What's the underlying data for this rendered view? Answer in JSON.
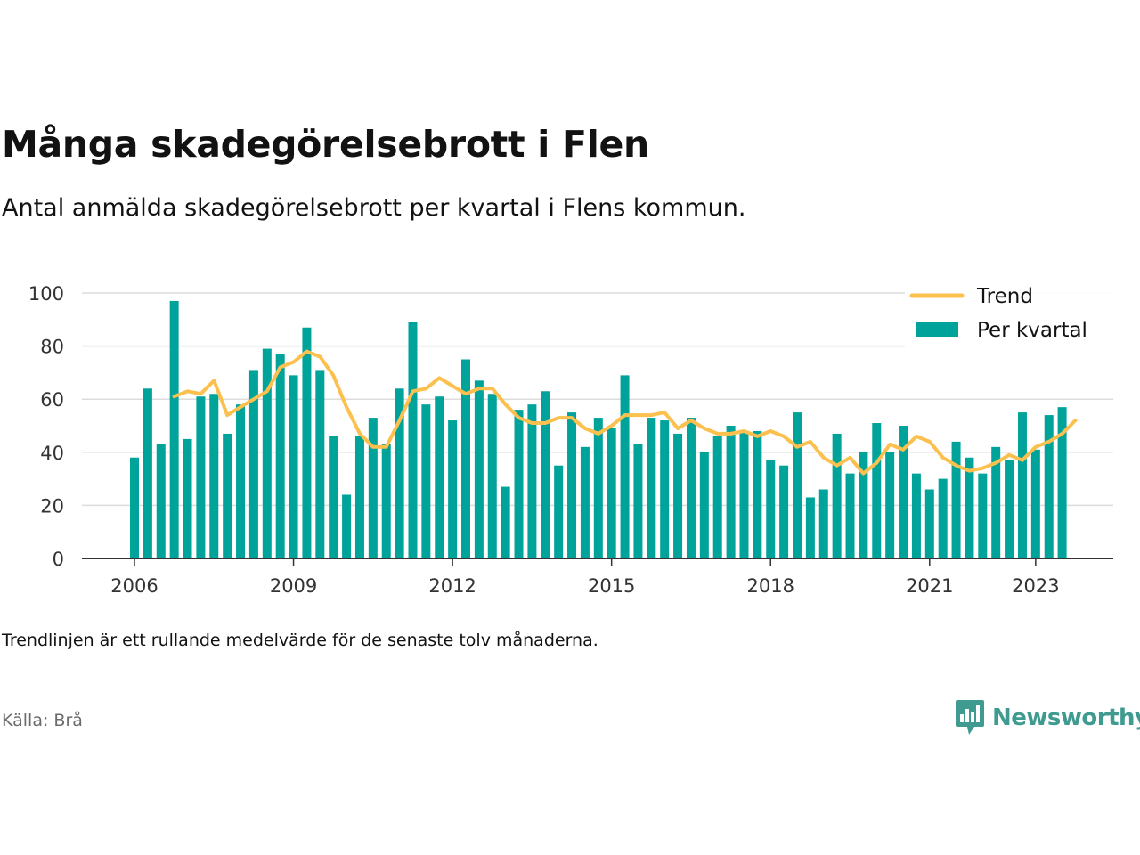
{
  "header": {
    "title": "Många skadegörelsebrott i Flen",
    "subtitle": "Antal anmälda skadegörelsebrott per kvartal i Flens kommun."
  },
  "footer": {
    "note": "Trendlinjen är ett rullande medelvärde för de senaste tolv månaderna.",
    "source": "Källa: Brå",
    "brand": "Newsworthy",
    "brand_icon": "bar-chart-speech-bubble-icon",
    "brand_color": "#3f9a8f"
  },
  "chart_data": {
    "type": "bar",
    "x_unit": "quarter",
    "x_start": "2006 Q1",
    "ylim": [
      0,
      100
    ],
    "yticks": [
      0,
      20,
      40,
      60,
      80,
      100
    ],
    "xticks": [
      "2006",
      "2009",
      "2012",
      "2015",
      "2018",
      "2021",
      "2023"
    ],
    "grid": true,
    "legend_position": "top-right",
    "series": [
      {
        "name": "Per kvartal",
        "type": "bar",
        "color": "#00a39a",
        "values": [
          38,
          64,
          43,
          97,
          45,
          61,
          62,
          47,
          58,
          71,
          79,
          77,
          69,
          87,
          71,
          46,
          24,
          46,
          53,
          43,
          64,
          89,
          58,
          61,
          52,
          75,
          67,
          62,
          27,
          56,
          58,
          63,
          35,
          55,
          42,
          53,
          49,
          69,
          43,
          53,
          52,
          47,
          53,
          40,
          46,
          50,
          48,
          48,
          37,
          35,
          55,
          23,
          26,
          47,
          32,
          40,
          51,
          40,
          50,
          32,
          26,
          30,
          44,
          38,
          32,
          42,
          37,
          55,
          41,
          54,
          57
        ]
      },
      {
        "name": "Trend",
        "type": "line",
        "color": "#fcc04f",
        "start_index": 3,
        "values": [
          61,
          63,
          62,
          67,
          54,
          57,
          60,
          63,
          72,
          74,
          78,
          76,
          69,
          57,
          47,
          42,
          42,
          52,
          63,
          64,
          68,
          65,
          62,
          64,
          64,
          58,
          53,
          51,
          51,
          53,
          53,
          49,
          47,
          50,
          54,
          54,
          54,
          55,
          49,
          52,
          49,
          47,
          47,
          48,
          46,
          48,
          46,
          42,
          44,
          38,
          35,
          38,
          32,
          36,
          43,
          41,
          46,
          44,
          38,
          35,
          33,
          34,
          36,
          39,
          37,
          42,
          44,
          47,
          52
        ]
      }
    ]
  }
}
